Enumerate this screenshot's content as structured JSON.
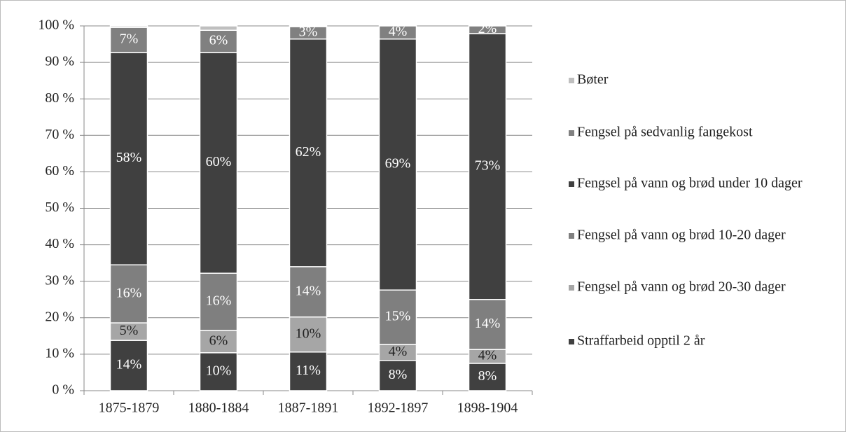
{
  "chart_data": {
    "type": "stacked_bar",
    "categories": [
      "1875-1879",
      "1880-1884",
      "1887-1891",
      "1892-1897",
      "1898-1904"
    ],
    "series": [
      {
        "name": "Straffarbeid opptil 2 år",
        "color": "#404040",
        "values": [
          13.8,
          10.4,
          10.6,
          8.3,
          7.5
        ],
        "value_labels": [
          "14%",
          "10%",
          "11%",
          "8%",
          "8%"
        ]
      },
      {
        "name": "Fengsel på vann og brød 20-30 dager",
        "color": "#a6a6a6",
        "values": [
          4.8,
          6.1,
          9.6,
          4.4,
          3.8
        ],
        "value_labels": [
          "5%",
          "6%",
          "10%",
          "4%",
          "4%"
        ]
      },
      {
        "name": "Fengsel på vann og brød 10-20 dager",
        "color": "#7f7f7f",
        "values": [
          15.9,
          15.7,
          13.8,
          14.9,
          13.7
        ],
        "value_labels": [
          "16%",
          "16%",
          "14%",
          "15%",
          "14%"
        ]
      },
      {
        "name": "Fengsel på vann og brød under 10 dager",
        "color": "#404040",
        "values": [
          58.2,
          60.5,
          62.4,
          68.8,
          72.9
        ],
        "value_labels": [
          "58%",
          "60%",
          "62%",
          "69%",
          "73%"
        ]
      },
      {
        "name": "Fengsel på sedvanlig fangekost",
        "color": "#808080",
        "values": [
          6.9,
          6.1,
          3.4,
          3.6,
          2.1
        ],
        "value_labels": [
          "7%",
          "6%",
          "3%",
          "4%",
          "2%"
        ]
      },
      {
        "name": "Bøter",
        "color": "#bfbfbf",
        "values": [
          0.4,
          1.2,
          0.2,
          0,
          0
        ]
      }
    ],
    "ylim": [
      0,
      100
    ],
    "yticks": [
      {
        "value": 0,
        "label": "0 %"
      },
      {
        "value": 10,
        "label": "10 %"
      },
      {
        "value": 20,
        "label": "20 %"
      },
      {
        "value": 30,
        "label": "30 %"
      },
      {
        "value": 40,
        "label": "40 %"
      },
      {
        "value": 50,
        "label": "50 %"
      },
      {
        "value": 60,
        "label": "60 %"
      },
      {
        "value": 70,
        "label": "70 %"
      },
      {
        "value": 80,
        "label": "80 %"
      },
      {
        "value": 90,
        "label": "90 %"
      },
      {
        "value": 100,
        "label": "100 %"
      }
    ],
    "grid": true,
    "legend": "right"
  }
}
